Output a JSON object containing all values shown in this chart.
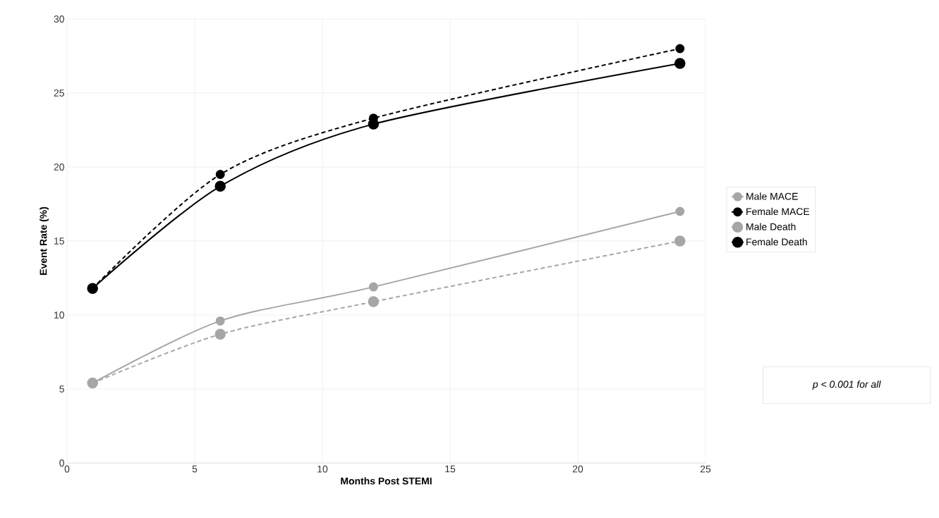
{
  "chart_data": {
    "type": "line",
    "xlabel": "Months Post STEMI",
    "ylabel": "Event Rate (%)",
    "x": [
      1,
      6,
      12,
      24
    ],
    "series": [
      {
        "name": "Male MACE",
        "color": "#a6a6a6",
        "line_style": "solid",
        "values": [
          5.4,
          9.6,
          11.9,
          17
        ]
      },
      {
        "name": "Female MACE",
        "color": "#000000",
        "line_style": "dashed",
        "values": [
          11.8,
          19.5,
          23.3,
          28
        ]
      },
      {
        "name": "Male Death",
        "color": "#a6a6a6",
        "line_style": "dashed",
        "values": [
          5.4,
          8.7,
          10.9,
          15
        ]
      },
      {
        "name": "Female Death",
        "color": "#000000",
        "line_style": "solid",
        "values": [
          11.8,
          18.7,
          22.9,
          27
        ]
      }
    ],
    "xlim": [
      0,
      25
    ],
    "xticks": [
      0,
      5,
      10,
      15,
      20,
      25
    ],
    "ylim": [
      0,
      30
    ],
    "yticks": [
      0,
      5,
      10,
      15,
      20,
      25,
      30
    ],
    "grid": true,
    "legend": "right",
    "marker": "circle",
    "annotations": [
      "p < 0.001 for all"
    ]
  }
}
